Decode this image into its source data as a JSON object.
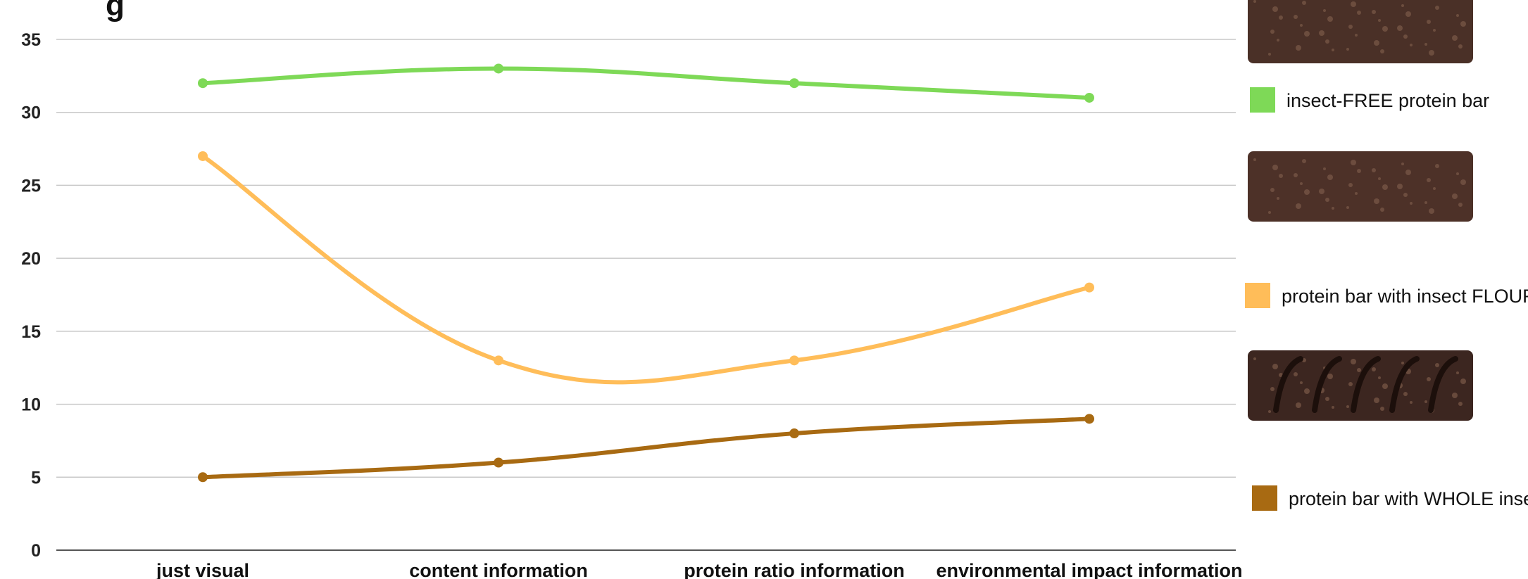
{
  "chart_data": {
    "type": "line",
    "title_fragment": "g",
    "categories": [
      "just visual",
      "content information",
      "protein ratio information",
      "environmental impact information"
    ],
    "ylim": [
      0,
      35
    ],
    "yticks": [
      0,
      5,
      10,
      15,
      20,
      25,
      30,
      35
    ],
    "grid": true,
    "legend_position": "right",
    "series": [
      {
        "name": "insect-FREE protein bar",
        "color": "#7ed957",
        "values": [
          32,
          33,
          32,
          31
        ]
      },
      {
        "name": "protein bar with insect FLOUR",
        "color": "#ffbd59",
        "values": [
          27,
          13,
          13,
          18
        ]
      },
      {
        "name": "protein bar with WHOLE insects",
        "color": "#a86a12",
        "values": [
          5,
          6,
          8,
          9
        ]
      }
    ],
    "legend_images": [
      {
        "name": "bar-photo-insect-free",
        "color": "#4a3027"
      },
      {
        "name": "bar-photo-insect-flour",
        "color": "#4d3128"
      },
      {
        "name": "bar-photo-whole-insects",
        "color": "#3c2620"
      }
    ]
  }
}
